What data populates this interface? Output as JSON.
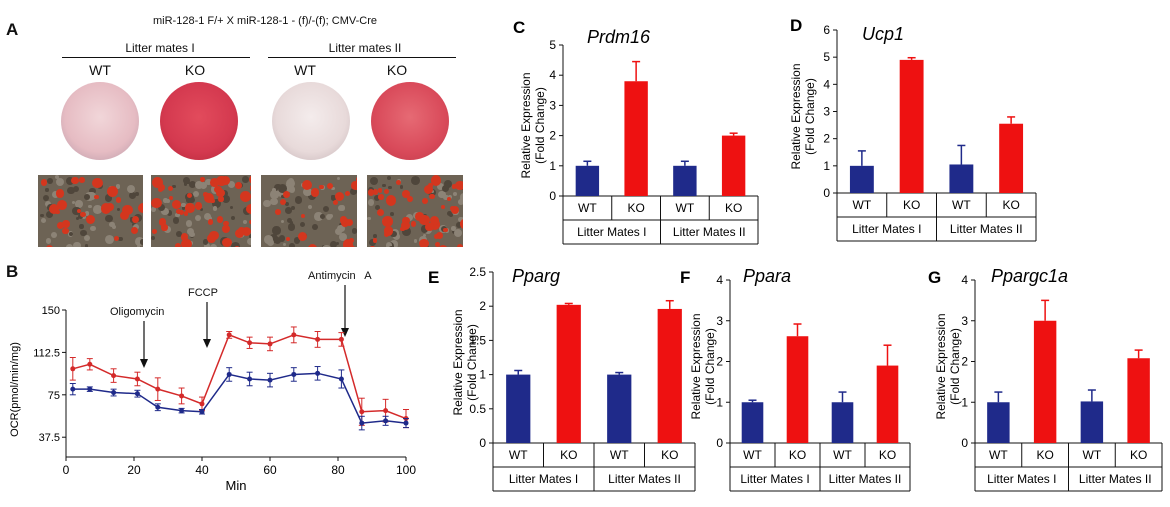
{
  "panelA": {
    "letter": "A",
    "cross": "miR-128-1 F/+ X miR-128-1 - (f)/-(f); CMV-Cre",
    "groups": [
      {
        "title": "Litter mates I",
        "wt": "WT",
        "ko": "KO"
      },
      {
        "title": "Litter mates II",
        "wt": "WT",
        "ko": "KO"
      }
    ],
    "colors": {
      "wt_plate": "#e6c2c8",
      "ko_plate": "#d4394f",
      "stain": "#d4361e",
      "cells": "#6d6355"
    }
  },
  "panelB": {
    "letter": "B",
    "annotations": [
      "Oligomycin",
      "FCCP",
      "Antimycin   A"
    ]
  },
  "chart_data": [
    {
      "id": "B",
      "type": "line",
      "xlabel": "Min",
      "ylabel": "OCR(pmol/min/mg)",
      "xlim": [
        0,
        100
      ],
      "ylim": [
        20,
        150
      ],
      "xticks": [
        "0",
        "20",
        "40",
        "60",
        "80",
        "100"
      ],
      "xtick_values": [
        0,
        20,
        40,
        60,
        80,
        100
      ],
      "yticks": [
        "37.5",
        "75",
        "112.5",
        "150"
      ],
      "ytick_values": [
        37.5,
        75,
        112.5,
        150
      ],
      "x": [
        2,
        7,
        14,
        21,
        27,
        34,
        40,
        48,
        54,
        60,
        67,
        74,
        81,
        87,
        94,
        100
      ],
      "series": [
        {
          "color": "#d42a2a",
          "values": [
            98,
            102,
            92,
            89,
            80,
            74,
            67,
            128,
            121,
            120,
            128,
            124,
            124,
            60,
            61,
            54
          ],
          "errors": [
            10,
            5,
            6,
            6,
            10,
            7,
            6,
            3,
            5,
            6,
            7,
            7,
            6,
            12,
            10,
            8
          ]
        },
        {
          "color": "#1f2a8a",
          "values": [
            80,
            80,
            77,
            76,
            64,
            61,
            60,
            93,
            89,
            88,
            93,
            94,
            89,
            50,
            52,
            50
          ],
          "errors": [
            5,
            2,
            3,
            3,
            3,
            2,
            2,
            6,
            6,
            6,
            6,
            6,
            8,
            6,
            4,
            4
          ]
        }
      ]
    },
    {
      "id": "C",
      "letter": "C",
      "title": "Prdm16",
      "type": "bar",
      "ylabel": [
        "Relative Expression",
        "(Fold Change)"
      ],
      "ylim": [
        0,
        5
      ],
      "yticks": [
        "0",
        "1",
        "2",
        "3",
        "4",
        "5"
      ],
      "categories": [
        "WT",
        "KO",
        "WT",
        "KO"
      ],
      "groups": [
        "Litter Mates I",
        "Litter Mates II"
      ],
      "values": [
        1.0,
        3.8,
        1.0,
        2.0
      ],
      "errors": [
        0.15,
        0.65,
        0.15,
        0.08
      ],
      "colors": [
        "#1f2a8a",
        "#ee1111",
        "#1f2a8a",
        "#ee1111"
      ]
    },
    {
      "id": "D",
      "letter": "D",
      "title": "Ucp1",
      "type": "bar",
      "ylabel": [
        "Relative Expression",
        "(Fold Change)"
      ],
      "ylim": [
        0,
        6
      ],
      "yticks": [
        "0",
        "1",
        "2",
        "3",
        "4",
        "5",
        "6"
      ],
      "categories": [
        "WT",
        "KO",
        "WT",
        "KO"
      ],
      "groups": [
        "Litter Mates I",
        "Litter Mates II"
      ],
      "values": [
        1.0,
        4.9,
        1.05,
        2.55
      ],
      "errors": [
        0.55,
        0.08,
        0.7,
        0.25
      ],
      "colors": [
        "#1f2a8a",
        "#ee1111",
        "#1f2a8a",
        "#ee1111"
      ]
    },
    {
      "id": "E",
      "letter": "E",
      "title": "Pparg",
      "type": "bar",
      "ylabel": [
        "Relative Expression",
        "(Fold Change)"
      ],
      "ylim": [
        0,
        2.5
      ],
      "yticks": [
        "0",
        "0.5",
        "1",
        "1.5",
        "2",
        "2.5"
      ],
      "categories": [
        "WT",
        "KO",
        "WT",
        "KO"
      ],
      "groups": [
        "Litter Mates I",
        "Litter Mates II"
      ],
      "values": [
        1.0,
        2.02,
        1.0,
        1.96
      ],
      "errors": [
        0.06,
        0.02,
        0.03,
        0.12
      ],
      "colors": [
        "#1f2a8a",
        "#ee1111",
        "#1f2a8a",
        "#ee1111"
      ]
    },
    {
      "id": "F",
      "letter": "F",
      "title": "Ppara",
      "type": "bar",
      "ylabel": [
        "Relative Expression",
        "(Fold Change)"
      ],
      "ylim": [
        0,
        4
      ],
      "yticks": [
        "0",
        "1",
        "2",
        "3",
        "4"
      ],
      "categories": [
        "WT",
        "KO",
        "WT",
        "KO"
      ],
      "groups": [
        "Litter Mates I",
        "Litter Mates II"
      ],
      "values": [
        1.0,
        2.62,
        1.0,
        1.9
      ],
      "errors": [
        0.05,
        0.3,
        0.25,
        0.5
      ],
      "colors": [
        "#1f2a8a",
        "#ee1111",
        "#1f2a8a",
        "#ee1111"
      ]
    },
    {
      "id": "G",
      "letter": "G",
      "title": "Ppargc1a",
      "type": "bar",
      "ylabel": [
        "Relative Expression",
        "(Fold Change)"
      ],
      "ylim": [
        0,
        4
      ],
      "yticks": [
        "0",
        "1",
        "2",
        "3",
        "4"
      ],
      "categories": [
        "WT",
        "KO",
        "WT",
        "KO"
      ],
      "groups": [
        "Litter Mates I",
        "Litter Mates II"
      ],
      "values": [
        1.0,
        3.0,
        1.02,
        2.08
      ],
      "errors": [
        0.25,
        0.5,
        0.28,
        0.2
      ],
      "colors": [
        "#1f2a8a",
        "#ee1111",
        "#1f2a8a",
        "#ee1111"
      ]
    }
  ]
}
